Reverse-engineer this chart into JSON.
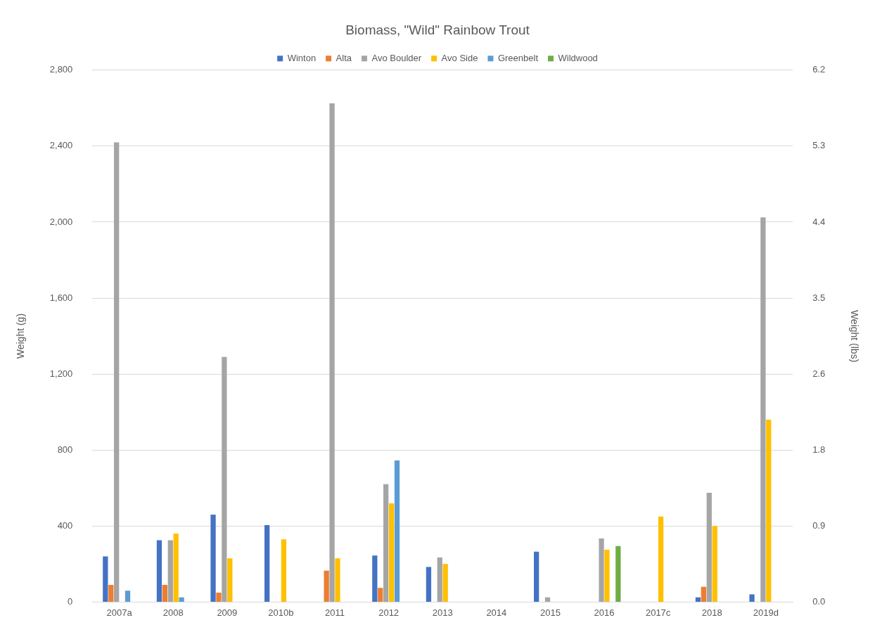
{
  "chart_data": {
    "type": "bar",
    "title": "Biomass, \"Wild\" Rainbow Trout",
    "ylabel": "Weight (g)",
    "y2label": "Weight (lbs)",
    "categories": [
      "2007a",
      "2008",
      "2009",
      "2010b",
      "2011",
      "2012",
      "2013",
      "2014",
      "2015",
      "2016",
      "2017c",
      "2018",
      "2019d"
    ],
    "series": [
      {
        "name": "Winton",
        "color": "#4472c4",
        "values": [
          240,
          325,
          460,
          405,
          null,
          245,
          185,
          null,
          265,
          null,
          null,
          25,
          40
        ]
      },
      {
        "name": "Alta",
        "color": "#ed7d31",
        "values": [
          90,
          90,
          50,
          null,
          165,
          75,
          null,
          null,
          null,
          null,
          null,
          80,
          null
        ]
      },
      {
        "name": "Avo Boulder",
        "color": "#a5a5a5",
        "values": [
          2420,
          325,
          1290,
          null,
          2625,
          620,
          235,
          null,
          25,
          335,
          null,
          575,
          2025
        ]
      },
      {
        "name": "Avo Side",
        "color": "#ffc000",
        "values": [
          null,
          360,
          230,
          330,
          230,
          520,
          200,
          null,
          null,
          275,
          450,
          400,
          960
        ]
      },
      {
        "name": "Greenbelt",
        "color": "#5b9bd5",
        "values": [
          60,
          25,
          null,
          null,
          null,
          745,
          null,
          null,
          null,
          null,
          null,
          null,
          null
        ]
      },
      {
        "name": "Wildwood",
        "color": "#70ad47",
        "values": [
          null,
          null,
          null,
          null,
          null,
          null,
          null,
          null,
          null,
          295,
          null,
          null,
          null
        ]
      }
    ],
    "ylim": [
      0,
      2800
    ],
    "yticks": [
      {
        "value": 0,
        "label": "0"
      },
      {
        "value": 400,
        "label": "400"
      },
      {
        "value": 800,
        "label": "800"
      },
      {
        "value": 1200,
        "label": "1,200"
      },
      {
        "value": 1600,
        "label": "1,600"
      },
      {
        "value": 2000,
        "label": "2,000"
      },
      {
        "value": 2400,
        "label": "2,400"
      },
      {
        "value": 2800,
        "label": "2,800"
      }
    ],
    "y2lim": [
      0,
      6.173
    ],
    "y2ticks": [
      {
        "value": 0,
        "label": "0.0"
      },
      {
        "value": 0.882,
        "label": "0.9"
      },
      {
        "value": 1.764,
        "label": "1.8"
      },
      {
        "value": 2.646,
        "label": "2.6"
      },
      {
        "value": 3.527,
        "label": "3.5"
      },
      {
        "value": 4.409,
        "label": "4.4"
      },
      {
        "value": 5.291,
        "label": "5.3"
      },
      {
        "value": 6.173,
        "label": "6.2"
      }
    ],
    "grid": "y",
    "legend": "top"
  }
}
